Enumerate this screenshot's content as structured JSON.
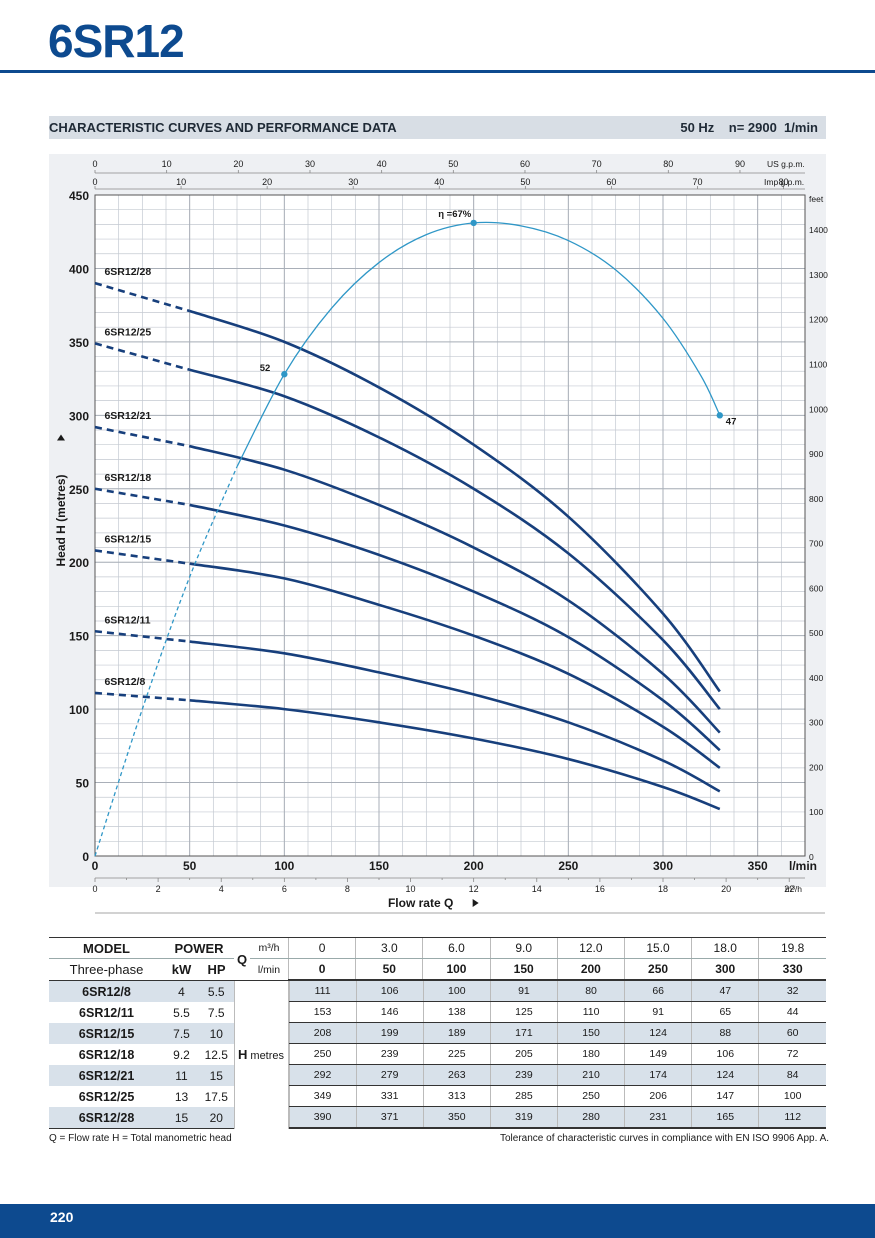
{
  "page": {
    "title": "6SR12",
    "section_label": "CHARACTERISTIC CURVES AND PERFORMANCE DATA",
    "spec": "50 Hz    n= 2900  1/min",
    "page_number": "220",
    "footnote_left": "Q = Flow rate   H = Total manometric head",
    "footnote_right": "Tolerance of characteristic curves in compliance with  EN ISO 9906 App. A."
  },
  "colors": {
    "brand": "#0d4a8f",
    "curve": "#173f7c",
    "efficiency": "#2f97c7",
    "grid": "#c4c9d1",
    "panel": "#eef0f3"
  },
  "chart_data": {
    "type": "line",
    "title": "CHARACTERISTIC CURVES AND PERFORMANCE DATA",
    "xlabel": "Flow rate  Q",
    "ylabel": "Head H (metres)",
    "x_unit": "l/min",
    "xlim": [
      0,
      375
    ],
    "ylim": [
      0,
      450
    ],
    "x_ticks": [
      0,
      50,
      100,
      150,
      200,
      250,
      300,
      350
    ],
    "y_ticks": [
      0,
      50,
      100,
      150,
      200,
      250,
      300,
      350,
      400,
      450
    ],
    "secondary_axes": {
      "m3h": {
        "label": "m³/h",
        "ticks": [
          0,
          2,
          4,
          6,
          8,
          10,
          12,
          14,
          16,
          18,
          20,
          22
        ]
      },
      "usgpm": {
        "label": "US g.p.m.",
        "ticks": [
          0,
          10,
          20,
          30,
          40,
          50,
          60,
          70,
          80,
          90
        ]
      },
      "impgpm": {
        "label": "Imp g.p.m.",
        "ticks": [
          0,
          10,
          20,
          30,
          40,
          50,
          60,
          70,
          80
        ]
      },
      "feet": {
        "label": "feet",
        "ticks": [
          0,
          100,
          200,
          300,
          400,
          500,
          600,
          700,
          800,
          900,
          1000,
          1100,
          1200,
          1300,
          1400
        ]
      }
    },
    "x": [
      0,
      50,
      100,
      150,
      200,
      250,
      300,
      330
    ],
    "series": [
      {
        "name": "6SR12/28",
        "values": [
          390,
          371,
          350,
          319,
          280,
          231,
          165,
          112
        ]
      },
      {
        "name": "6SR12/25",
        "values": [
          349,
          331,
          313,
          285,
          250,
          206,
          147,
          100
        ]
      },
      {
        "name": "6SR12/21",
        "values": [
          292,
          279,
          263,
          239,
          210,
          174,
          124,
          84
        ]
      },
      {
        "name": "6SR12/18",
        "values": [
          250,
          239,
          225,
          205,
          180,
          149,
          106,
          72
        ]
      },
      {
        "name": "6SR12/15",
        "values": [
          208,
          199,
          189,
          171,
          150,
          124,
          88,
          60
        ]
      },
      {
        "name": "6SR12/11",
        "values": [
          153,
          146,
          138,
          125,
          110,
          91,
          65,
          44
        ]
      },
      {
        "name": "6SR12/8",
        "values": [
          111,
          106,
          100,
          91,
          80,
          66,
          47,
          32
        ]
      }
    ],
    "efficiency": {
      "label": "η =67%",
      "points": [
        {
          "x": 100,
          "eta": 52,
          "label": "52"
        },
        {
          "x": 200,
          "eta": 67,
          "label": ""
        },
        {
          "x": 330,
          "eta": 47,
          "label": "47"
        }
      ],
      "curve_x": [
        0,
        25,
        50,
        75,
        100,
        125,
        150,
        175,
        200,
        225,
        250,
        275,
        300,
        320,
        330
      ],
      "curve_y": [
        0,
        100,
        190,
        265,
        328,
        373,
        404,
        423,
        431,
        429,
        419,
        399,
        366,
        327,
        300
      ]
    }
  },
  "table": {
    "col_model": "MODEL",
    "col_power": "POWER",
    "three_phase": "Three-phase",
    "kw": "kW",
    "hp": "HP",
    "q": "Q",
    "m3h_unit": "m³/h",
    "lmin_unit": "l/min",
    "h_label": "H",
    "h_unit": "metres",
    "q_m3h": [
      "0",
      "3.0",
      "6.0",
      "9.0",
      "12.0",
      "15.0",
      "18.0",
      "19.8"
    ],
    "q_lmin": [
      "0",
      "50",
      "100",
      "150",
      "200",
      "250",
      "300",
      "330"
    ],
    "rows": [
      {
        "model": "6SR12/8",
        "kw": "4",
        "hp": "5.5",
        "h": [
          "111",
          "106",
          "100",
          "91",
          "80",
          "66",
          "47",
          "32"
        ]
      },
      {
        "model": "6SR12/11",
        "kw": "5.5",
        "hp": "7.5",
        "h": [
          "153",
          "146",
          "138",
          "125",
          "110",
          "91",
          "65",
          "44"
        ]
      },
      {
        "model": "6SR12/15",
        "kw": "7.5",
        "hp": "10",
        "h": [
          "208",
          "199",
          "189",
          "171",
          "150",
          "124",
          "88",
          "60"
        ]
      },
      {
        "model": "6SR12/18",
        "kw": "9.2",
        "hp": "12.5",
        "h": [
          "250",
          "239",
          "225",
          "205",
          "180",
          "149",
          "106",
          "72"
        ]
      },
      {
        "model": "6SR12/21",
        "kw": "11",
        "hp": "15",
        "h": [
          "292",
          "279",
          "263",
          "239",
          "210",
          "174",
          "124",
          "84"
        ]
      },
      {
        "model": "6SR12/25",
        "kw": "13",
        "hp": "17.5",
        "h": [
          "349",
          "331",
          "313",
          "285",
          "250",
          "206",
          "147",
          "100"
        ]
      },
      {
        "model": "6SR12/28",
        "kw": "15",
        "hp": "20",
        "h": [
          "390",
          "371",
          "350",
          "319",
          "280",
          "231",
          "165",
          "112"
        ]
      }
    ]
  }
}
